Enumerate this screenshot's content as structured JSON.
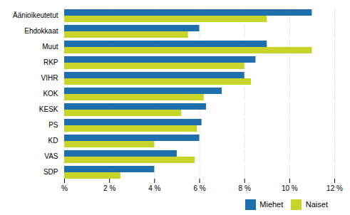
{
  "chart_data": {
    "type": "bar",
    "orientation": "horizontal",
    "categories": [
      "Äänioikeutetut",
      "Ehdokkaat",
      "Muut",
      "RKP",
      "VIHR",
      "KOK",
      "KESK",
      "PS",
      "KD",
      "VAS",
      "SDP"
    ],
    "series": [
      {
        "name": "Miehet",
        "color": "#1f6fad",
        "values": [
          11.0,
          6.0,
          9.0,
          8.5,
          8.0,
          7.0,
          6.3,
          6.1,
          6.0,
          5.0,
          4.0
        ]
      },
      {
        "name": "Naiset",
        "color": "#c8d42a",
        "values": [
          9.0,
          5.5,
          11.0,
          8.0,
          8.3,
          6.2,
          5.2,
          5.9,
          4.0,
          5.8,
          2.5
        ]
      }
    ],
    "xlim": [
      0,
      12
    ],
    "xticks": [
      {
        "value": 0,
        "label": "%"
      },
      {
        "value": 2,
        "label": "2 %"
      },
      {
        "value": 4,
        "label": "4 %"
      },
      {
        "value": 6,
        "label": "6 %"
      },
      {
        "value": 8,
        "label": "8 %"
      },
      {
        "value": 10,
        "label": "10 %"
      },
      {
        "value": 12,
        "label": "12 %"
      }
    ],
    "grid": true,
    "legend": "lower right"
  }
}
